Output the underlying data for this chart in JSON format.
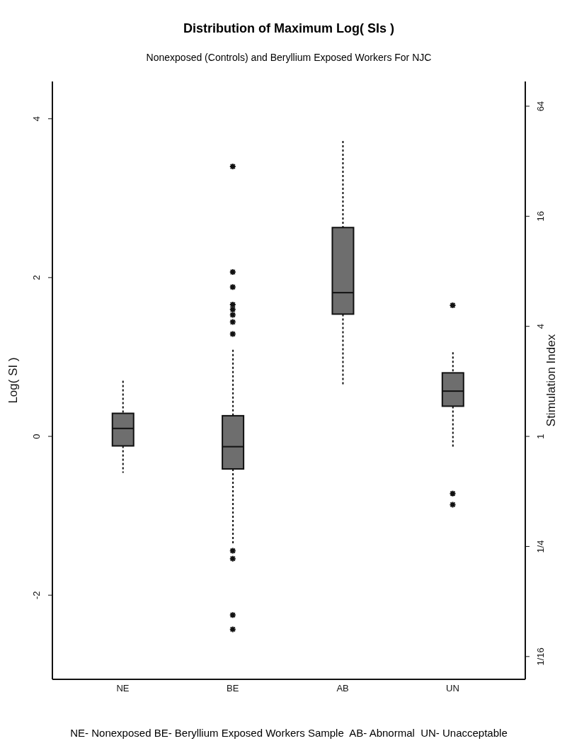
{
  "chart_data": {
    "type": "box",
    "title": "Distribution of Maximum Log( SIs )",
    "subtitle": "Nonexposed (Controls) and Beryllium Exposed Workers For NJC",
    "ylabel": "Log( SI )",
    "y2label": "Stimulation Index",
    "categories": [
      "NE",
      "BE",
      "AB",
      "UN"
    ],
    "color": "#6e6e6e",
    "boxes": [
      {
        "low": -0.46,
        "q1": -0.12,
        "median": 0.1,
        "q3": 0.29,
        "high": 0.7
      },
      {
        "low": -1.36,
        "q1": -0.41,
        "median": -0.13,
        "q3": 0.26,
        "high": 1.09,
        "outliers": [
          3.4,
          2.07,
          1.88,
          1.66,
          1.6,
          1.53,
          1.44,
          1.29,
          -1.44,
          -1.54,
          -2.25,
          -2.43
        ]
      },
      {
        "low": 0.63,
        "q1": 1.54,
        "median": 1.81,
        "q3": 2.63,
        "high": 3.72
      },
      {
        "low": -0.15,
        "q1": 0.38,
        "median": 0.57,
        "q3": 0.8,
        "high": 1.06,
        "outliers": [
          1.65,
          -0.72,
          -0.86
        ]
      }
    ],
    "ylim": [
      -3.06,
      4.47
    ],
    "yticks": [
      -2,
      0,
      2,
      4
    ],
    "log": "y2",
    "y2lim": [
      0.0469,
      87.4
    ],
    "y2ticks": [
      {
        "value": 0.0625,
        "label": "1/16"
      },
      {
        "value": 0.25,
        "label": "1/4"
      },
      1,
      4,
      16,
      64
    ],
    "annotations": [
      "NE- Nonexposed BE- Beryllium Exposed Workers Sample  AB- Abnormal  UN- Unacceptable"
    ]
  }
}
